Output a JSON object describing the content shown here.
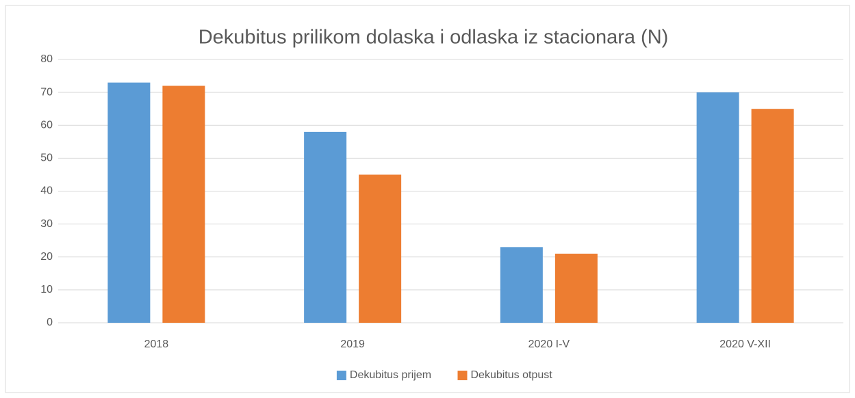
{
  "chart_data": {
    "type": "bar",
    "title": "Dekubitus prilikom dolaska i odlaska iz stacionara (N)",
    "categories": [
      "2018",
      "2019",
      "2020 I-V",
      "2020 V-XII"
    ],
    "series": [
      {
        "name": "Dekubitus prijem",
        "color": "#5b9bd5",
        "values": [
          73,
          58,
          23,
          70
        ]
      },
      {
        "name": "Dekubitus otpust",
        "color": "#ed7d31",
        "values": [
          72,
          45,
          21,
          65
        ]
      }
    ],
    "ylim": [
      0,
      80
    ],
    "yticks": [
      0,
      10,
      20,
      30,
      40,
      50,
      60,
      70,
      80
    ],
    "grid": true,
    "legend": "bottom"
  }
}
